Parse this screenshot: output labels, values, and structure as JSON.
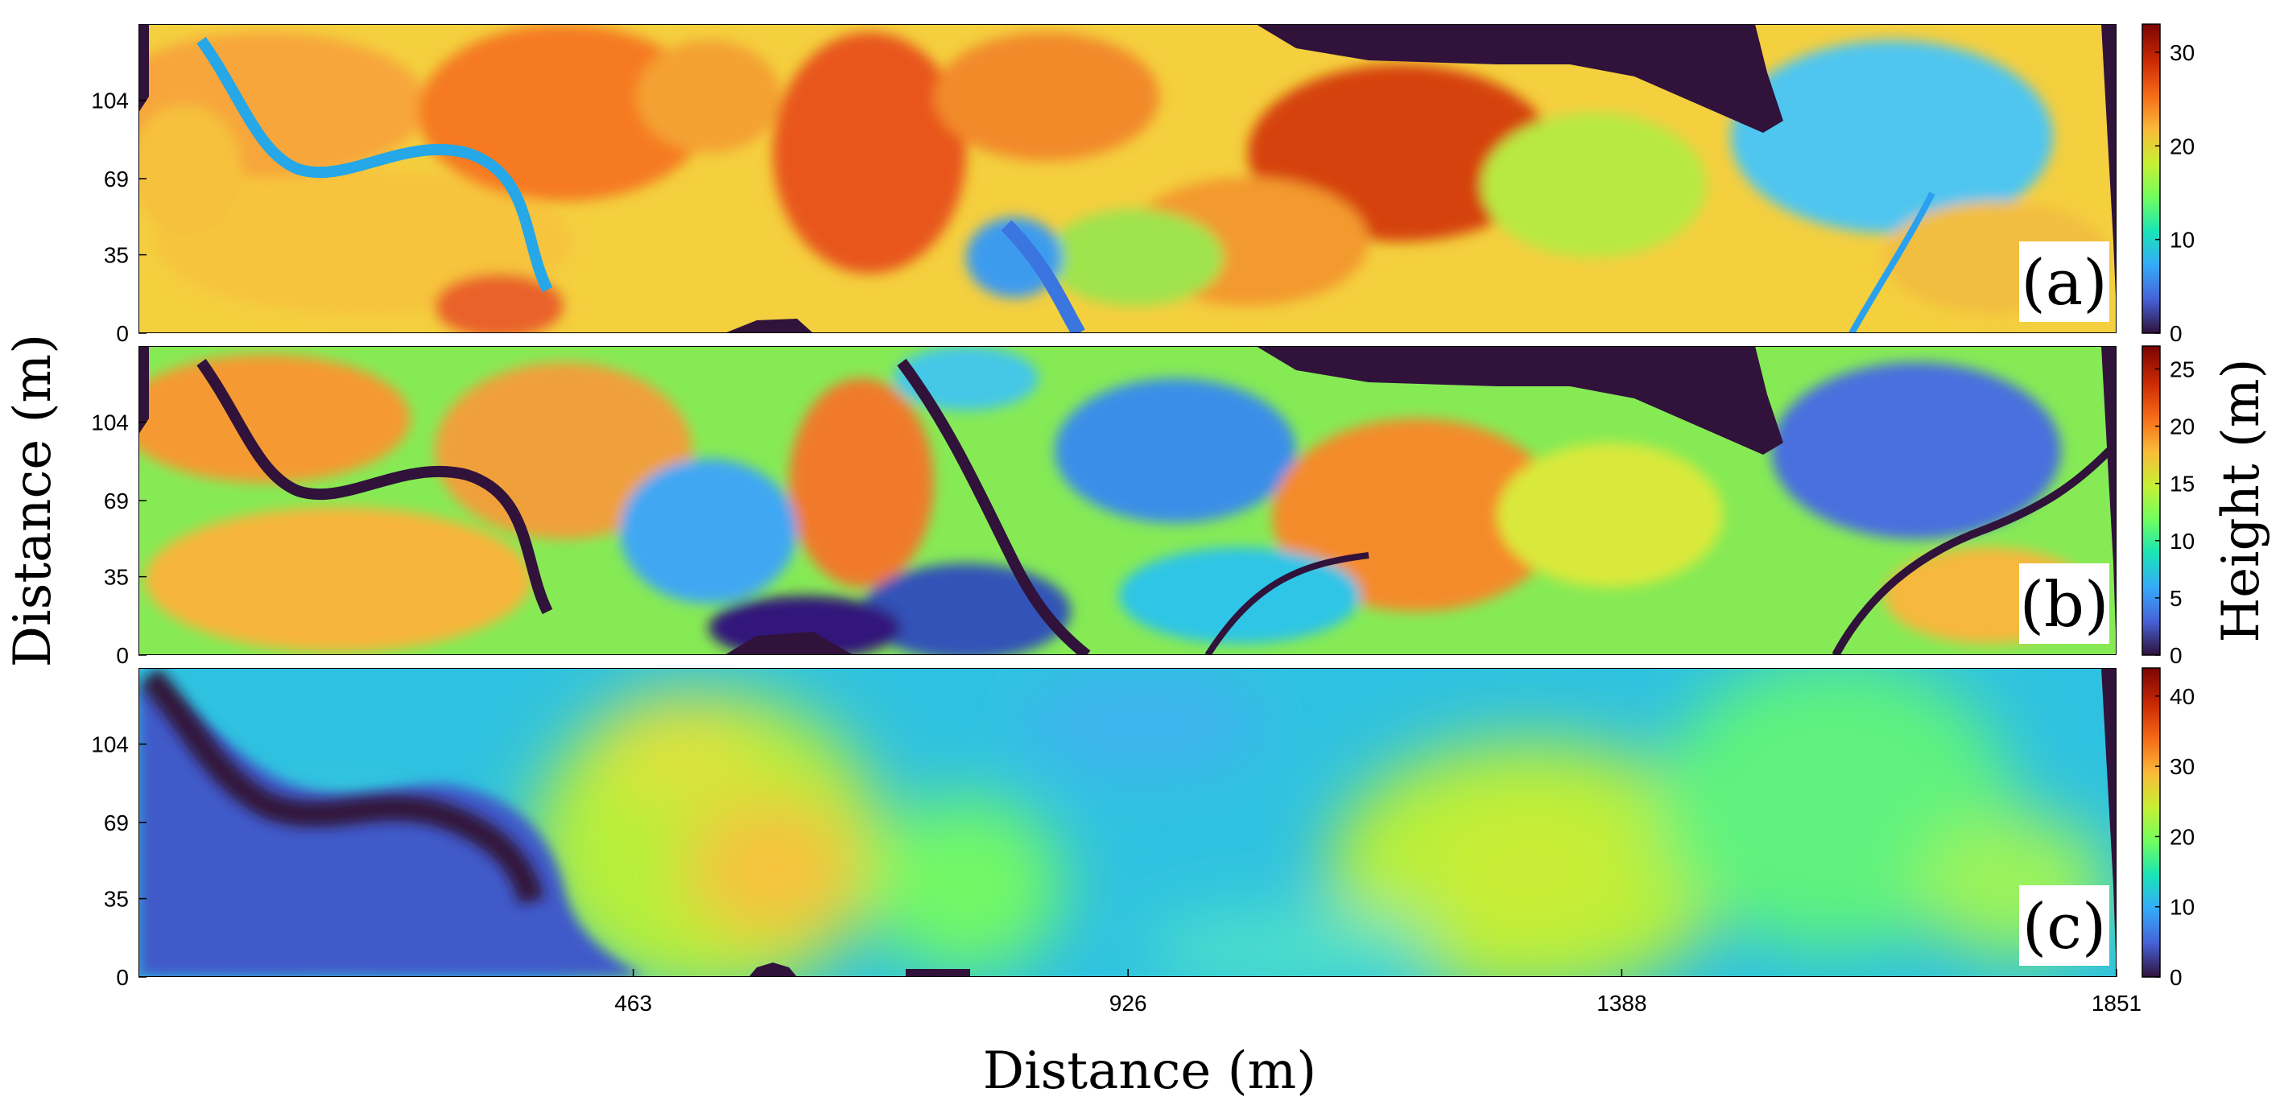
{
  "chart_data": [
    {
      "type": "heatmap",
      "panel_label": "(a)",
      "colormap": "turbo",
      "x_range": [
        0,
        1851
      ],
      "y_range": [
        0,
        138
      ],
      "y_ticks": [
        0,
        35,
        69,
        104
      ],
      "x_ticks": [],
      "colorbar_ticks": [
        0,
        10,
        20,
        30
      ],
      "colorbar_range": [
        0,
        33
      ],
      "nodata_color": "#30123b"
    },
    {
      "type": "heatmap",
      "panel_label": "(b)",
      "colormap": "turbo",
      "x_range": [
        0,
        1851
      ],
      "y_range": [
        0,
        138
      ],
      "y_ticks": [
        0,
        35,
        69,
        104
      ],
      "x_ticks": [],
      "colorbar_ticks": [
        0,
        5,
        10,
        15,
        20,
        25
      ],
      "colorbar_range": [
        0,
        27
      ],
      "nodata_color": "#30123b"
    },
    {
      "type": "heatmap",
      "panel_label": "(c)",
      "colormap": "turbo",
      "x_range": [
        0,
        1851
      ],
      "y_range": [
        0,
        138
      ],
      "y_ticks": [
        0,
        35,
        69,
        104
      ],
      "x_ticks": [
        463,
        926,
        1388,
        1851
      ],
      "colorbar_ticks": [
        0,
        10,
        20,
        30,
        40
      ],
      "colorbar_range": [
        0,
        44
      ],
      "nodata_color": "#30123b"
    }
  ],
  "labels": {
    "x_axis": "Distance (m)",
    "y_axis": "Distance (m)",
    "colorbar": "Height (m)"
  },
  "colors": {
    "turbo_stops": [
      "#30123b",
      "#4662d7",
      "#36aaf9",
      "#1ae4b6",
      "#72fe5e",
      "#c7ef34",
      "#faba39",
      "#f66b19",
      "#ca2a04",
      "#7a0403"
    ],
    "frame": "#000000",
    "background": "#ffffff"
  }
}
